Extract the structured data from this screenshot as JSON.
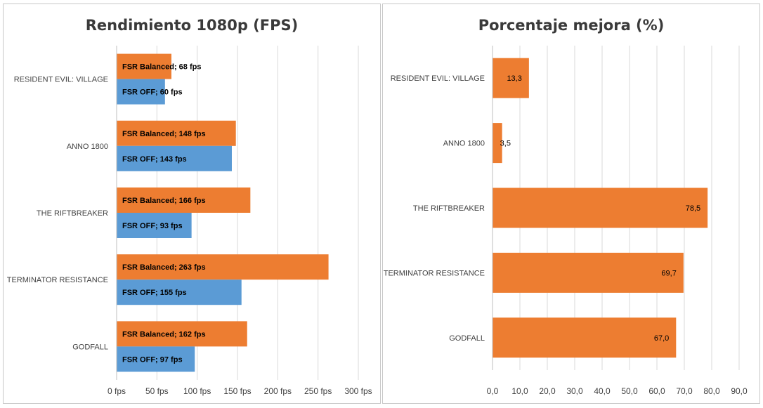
{
  "colors": {
    "fsr_balanced": "#ED7D31",
    "fsr_off": "#5B9BD5",
    "grid": "#d9d9d9",
    "axis": "#bfbfbf",
    "text": "#404040",
    "label_text": "#000000"
  },
  "chart_data": [
    {
      "type": "bar",
      "orientation": "horizontal",
      "title": "Rendimiento 1080p (FPS)",
      "categories": [
        "RESIDENT EVIL: VILLAGE",
        "ANNO 1800",
        "THE RIFTBREAKER",
        "TERMINATOR RESISTANCE",
        "GODFALL"
      ],
      "series": [
        {
          "name": "FSR Balanced",
          "values": [
            68,
            148,
            166,
            263,
            162
          ],
          "labels": [
            "FSR Balanced; 68 fps",
            "FSR Balanced; 148 fps",
            "FSR Balanced; 166 fps",
            "FSR Balanced; 263 fps",
            "FSR Balanced; 162 fps"
          ]
        },
        {
          "name": "FSR OFF",
          "values": [
            60,
            143,
            93,
            155,
            97
          ],
          "labels": [
            "FSR OFF; 60 fps",
            "FSR OFF; 143 fps",
            "FSR OFF; 93 fps",
            "FSR OFF; 155 fps",
            "FSR OFF; 97 fps"
          ]
        }
      ],
      "xlim": [
        0,
        300
      ],
      "xticks": [
        0,
        50,
        100,
        150,
        200,
        250,
        300
      ],
      "xtick_labels": [
        "0 fps",
        "50 fps",
        "100 fps",
        "150 fps",
        "200 fps",
        "250 fps",
        "300 fps"
      ],
      "grid": true
    },
    {
      "type": "bar",
      "orientation": "horizontal",
      "title": "Porcentaje mejora (%)",
      "categories": [
        "RESIDENT EVIL: VILLAGE",
        "ANNO 1800",
        "THE RIFTBREAKER",
        "TERMINATOR RESISTANCE",
        "GODFALL"
      ],
      "series": [
        {
          "values": [
            13.3,
            3.5,
            78.5,
            69.7,
            67.0
          ],
          "labels": [
            "13,3",
            "3,5",
            "78,5",
            "69,7",
            "67,0"
          ]
        }
      ],
      "xlim": [
        0,
        90
      ],
      "xticks": [
        0,
        10,
        20,
        30,
        40,
        50,
        60,
        70,
        80,
        90
      ],
      "xtick_labels": [
        "0,0",
        "10,0",
        "20,0",
        "30,0",
        "40,0",
        "50,0",
        "60,0",
        "70,0",
        "80,0",
        "90,0"
      ],
      "grid": true
    }
  ]
}
